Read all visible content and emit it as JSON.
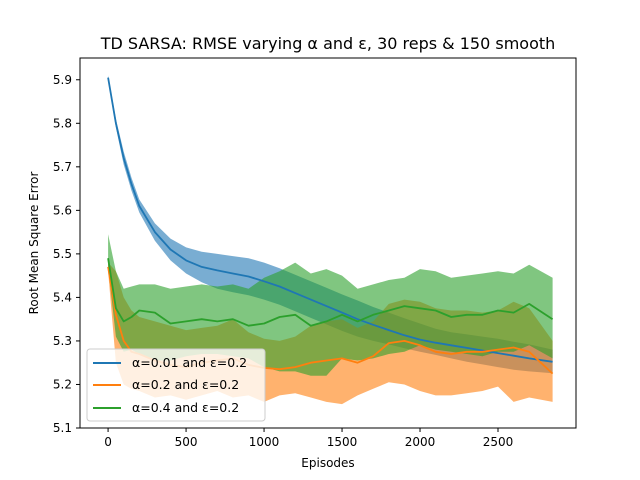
{
  "chart_data": {
    "type": "line",
    "title": "TD SARSA: RMSE varying α and ε, 30 reps & 150 smooth",
    "xlabel": "Episodes",
    "ylabel": "Root Mean Square Error",
    "xlim": [
      -180,
      3000
    ],
    "ylim": [
      5.1,
      5.95
    ],
    "xticks": [
      0,
      500,
      1000,
      1500,
      2000,
      2500
    ],
    "yticks": [
      5.1,
      5.2,
      5.3,
      5.4,
      5.5,
      5.6,
      5.7,
      5.8,
      5.9
    ],
    "grid": false,
    "legend_position": "lower-left",
    "x": [
      0,
      50,
      100,
      150,
      200,
      300,
      400,
      500,
      600,
      700,
      800,
      900,
      1000,
      1100,
      1200,
      1300,
      1400,
      1500,
      1600,
      1700,
      1800,
      1900,
      2000,
      2100,
      2200,
      2300,
      2400,
      2500,
      2600,
      2700,
      2850
    ],
    "series": [
      {
        "name": "α=0.01 and ε=0.2",
        "color": "#1f77b4",
        "values": [
          5.905,
          5.8,
          5.72,
          5.66,
          5.61,
          5.55,
          5.51,
          5.485,
          5.47,
          5.462,
          5.455,
          5.448,
          5.437,
          5.425,
          5.41,
          5.395,
          5.38,
          5.365,
          5.35,
          5.337,
          5.325,
          5.313,
          5.303,
          5.296,
          5.29,
          5.284,
          5.278,
          5.272,
          5.266,
          5.26,
          5.252
        ],
        "lower": [
          5.9,
          5.79,
          5.705,
          5.645,
          5.595,
          5.53,
          5.485,
          5.455,
          5.435,
          5.42,
          5.412,
          5.405,
          5.395,
          5.383,
          5.368,
          5.353,
          5.338,
          5.323,
          5.31,
          5.3,
          5.292,
          5.283,
          5.275,
          5.268,
          5.26,
          5.252,
          5.246,
          5.24,
          5.234,
          5.23,
          5.226
        ],
        "upper": [
          5.91,
          5.81,
          5.735,
          5.675,
          5.625,
          5.57,
          5.535,
          5.515,
          5.505,
          5.5,
          5.495,
          5.49,
          5.48,
          5.467,
          5.452,
          5.437,
          5.422,
          5.407,
          5.393,
          5.378,
          5.365,
          5.352,
          5.34,
          5.328,
          5.32,
          5.315,
          5.31,
          5.305,
          5.298,
          5.292,
          5.28
        ]
      },
      {
        "name": "α=0.2 and ε=0.2",
        "color": "#ff7f0e",
        "values": [
          5.47,
          5.36,
          5.3,
          5.275,
          5.27,
          5.255,
          5.245,
          5.24,
          5.25,
          5.255,
          5.26,
          5.245,
          5.238,
          5.235,
          5.24,
          5.25,
          5.255,
          5.26,
          5.25,
          5.265,
          5.295,
          5.3,
          5.29,
          5.275,
          5.27,
          5.275,
          5.275,
          5.28,
          5.285,
          5.275,
          5.225
        ],
        "lower": [
          5.46,
          5.25,
          5.2,
          5.19,
          5.185,
          5.17,
          5.175,
          5.165,
          5.175,
          5.185,
          5.17,
          5.175,
          5.16,
          5.175,
          5.18,
          5.17,
          5.16,
          5.155,
          5.175,
          5.19,
          5.205,
          5.2,
          5.185,
          5.175,
          5.175,
          5.18,
          5.185,
          5.195,
          5.16,
          5.17,
          5.16
        ],
        "upper": [
          5.48,
          5.46,
          5.4,
          5.37,
          5.355,
          5.345,
          5.335,
          5.325,
          5.33,
          5.335,
          5.35,
          5.32,
          5.305,
          5.3,
          5.31,
          5.335,
          5.345,
          5.35,
          5.33,
          5.345,
          5.385,
          5.395,
          5.39,
          5.375,
          5.37,
          5.37,
          5.365,
          5.37,
          5.39,
          5.375,
          5.3
        ]
      },
      {
        "name": "α=0.4 and ε=0.2",
        "color": "#2ca02c",
        "values": [
          5.49,
          5.375,
          5.345,
          5.355,
          5.37,
          5.365,
          5.34,
          5.345,
          5.35,
          5.345,
          5.35,
          5.335,
          5.34,
          5.355,
          5.36,
          5.335,
          5.345,
          5.36,
          5.345,
          5.36,
          5.37,
          5.38,
          5.375,
          5.37,
          5.355,
          5.36,
          5.36,
          5.37,
          5.365,
          5.385,
          5.35
        ],
        "lower": [
          5.47,
          5.31,
          5.275,
          5.28,
          5.27,
          5.255,
          5.255,
          5.265,
          5.27,
          5.27,
          5.265,
          5.26,
          5.24,
          5.23,
          5.23,
          5.22,
          5.22,
          5.26,
          5.255,
          5.26,
          5.27,
          5.275,
          5.29,
          5.28,
          5.275,
          5.27,
          5.265,
          5.275,
          5.275,
          5.29,
          5.26
        ],
        "upper": [
          5.545,
          5.46,
          5.42,
          5.425,
          5.43,
          5.43,
          5.42,
          5.425,
          5.43,
          5.425,
          5.43,
          5.42,
          5.445,
          5.46,
          5.48,
          5.455,
          5.465,
          5.45,
          5.42,
          5.43,
          5.44,
          5.445,
          5.465,
          5.46,
          5.445,
          5.45,
          5.455,
          5.46,
          5.455,
          5.475,
          5.445
        ]
      }
    ]
  }
}
